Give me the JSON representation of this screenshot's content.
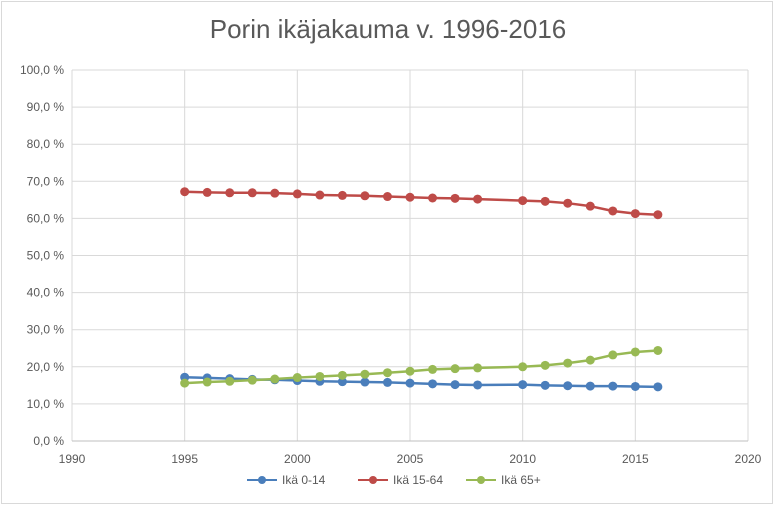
{
  "chart_data": {
    "type": "line",
    "title": "Porin ikäjakauma v. 1996-2016",
    "xlabel": "",
    "ylabel": "",
    "xlim": [
      1990,
      2020
    ],
    "ylim": [
      0,
      100
    ],
    "x_ticks": [
      1990,
      1995,
      2000,
      2005,
      2010,
      2015,
      2020
    ],
    "x_tick_labels": [
      "1990",
      "1995",
      "2000",
      "2005",
      "2010",
      "2015",
      "2020"
    ],
    "y_ticks": [
      0,
      10,
      20,
      30,
      40,
      50,
      60,
      70,
      80,
      90,
      100
    ],
    "y_tick_labels": [
      "0,0 %",
      "10,0 %",
      "20,0 %",
      "30,0 %",
      "40,0 %",
      "50,0 %",
      "60,0 %",
      "70,0 %",
      "80,0 %",
      "90,0 %",
      "100,0 %"
    ],
    "grid": true,
    "legend_position": "bottom",
    "x": [
      1995,
      1996,
      1997,
      1998,
      1999,
      2000,
      2001,
      2002,
      2003,
      2004,
      2005,
      2006,
      2007,
      2008,
      2010,
      2011,
      2012,
      2013,
      2014,
      2015,
      2016
    ],
    "series": [
      {
        "name": "Ikä 0-14",
        "color": "#4a7ebb",
        "values": [
          17.2,
          17.0,
          16.8,
          16.6,
          16.5,
          16.3,
          16.1,
          16.0,
          15.9,
          15.8,
          15.6,
          15.4,
          15.2,
          15.1,
          15.2,
          15.0,
          14.9,
          14.8,
          14.8,
          14.7,
          14.6
        ]
      },
      {
        "name": "Ikä 15-64",
        "color": "#be4b48",
        "values": [
          67.2,
          67.0,
          66.9,
          66.9,
          66.8,
          66.6,
          66.3,
          66.2,
          66.1,
          65.9,
          65.7,
          65.5,
          65.4,
          65.2,
          64.8,
          64.6,
          64.1,
          63.3,
          62.0,
          61.3,
          61.0
        ]
      },
      {
        "name": "Ikä 65+",
        "color": "#98b954",
        "values": [
          15.6,
          15.9,
          16.1,
          16.4,
          16.7,
          17.1,
          17.4,
          17.7,
          18.0,
          18.4,
          18.8,
          19.3,
          19.5,
          19.7,
          20.0,
          20.4,
          21.0,
          21.8,
          23.2,
          24.0,
          24.4
        ]
      }
    ]
  }
}
